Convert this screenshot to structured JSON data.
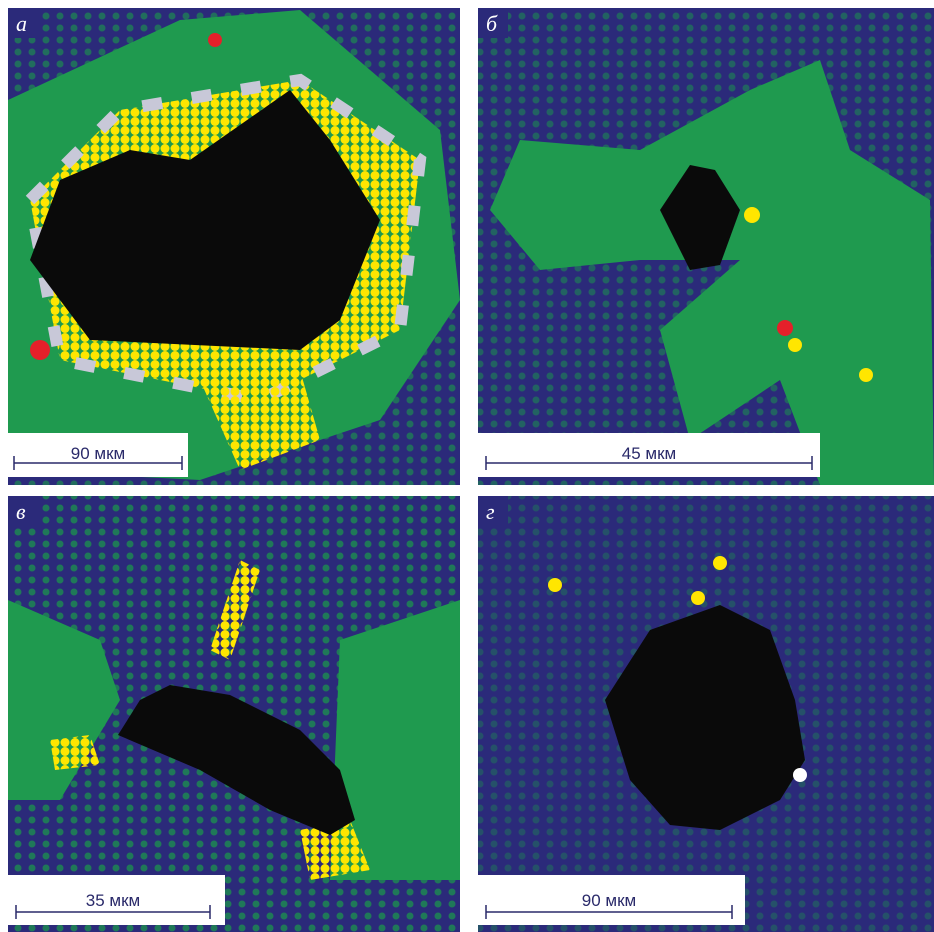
{
  "panels": [
    {
      "label": "а",
      "scale_bar": "90 мкм"
    },
    {
      "label": "б",
      "scale_bar": "45 мкм"
    },
    {
      "label": "в",
      "scale_bar": "35 мкм"
    },
    {
      "label": "г",
      "scale_bar": "90 мкм"
    }
  ]
}
